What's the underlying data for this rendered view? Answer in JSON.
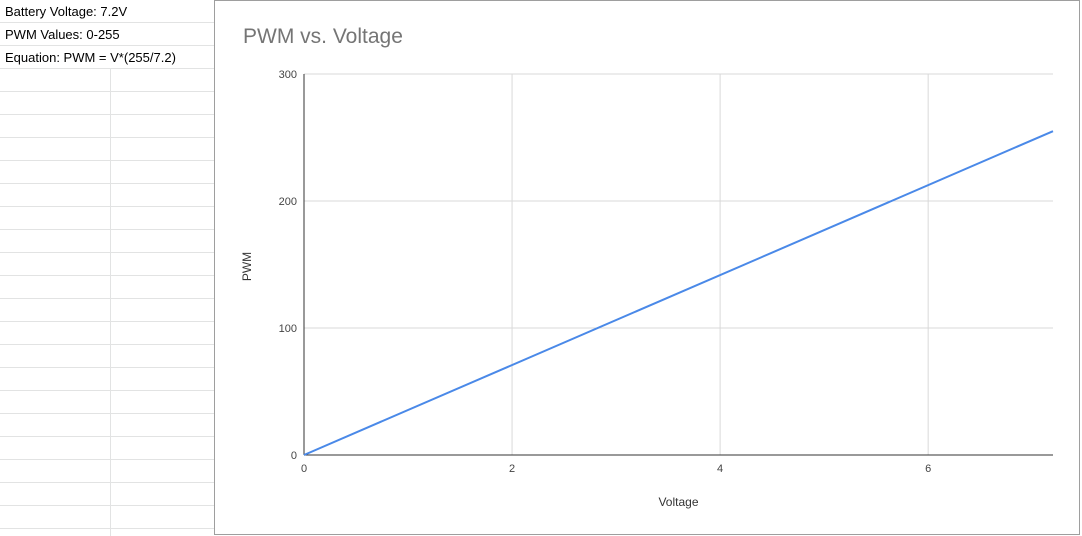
{
  "cells": [
    {
      "text": "Battery Voltage: 7.2V"
    },
    {
      "text": "PWM Values: 0-255"
    },
    {
      "text": "Equation: PWM = V*(255/7.2)"
    }
  ],
  "chart_data": {
    "type": "line",
    "title": "PWM vs. Voltage",
    "xlabel": "Voltage",
    "ylabel": "PWM",
    "xlim": [
      0,
      7.2
    ],
    "ylim": [
      0,
      300
    ],
    "x_ticks": [
      "0",
      "2",
      "4",
      "6"
    ],
    "y_ticks": [
      "0",
      "100",
      "200",
      "300"
    ],
    "grid": true,
    "legend": "none",
    "series": [
      {
        "color": "#4a89e8",
        "points": [
          [
            0,
            0
          ],
          [
            7.2,
            255
          ]
        ]
      }
    ]
  }
}
